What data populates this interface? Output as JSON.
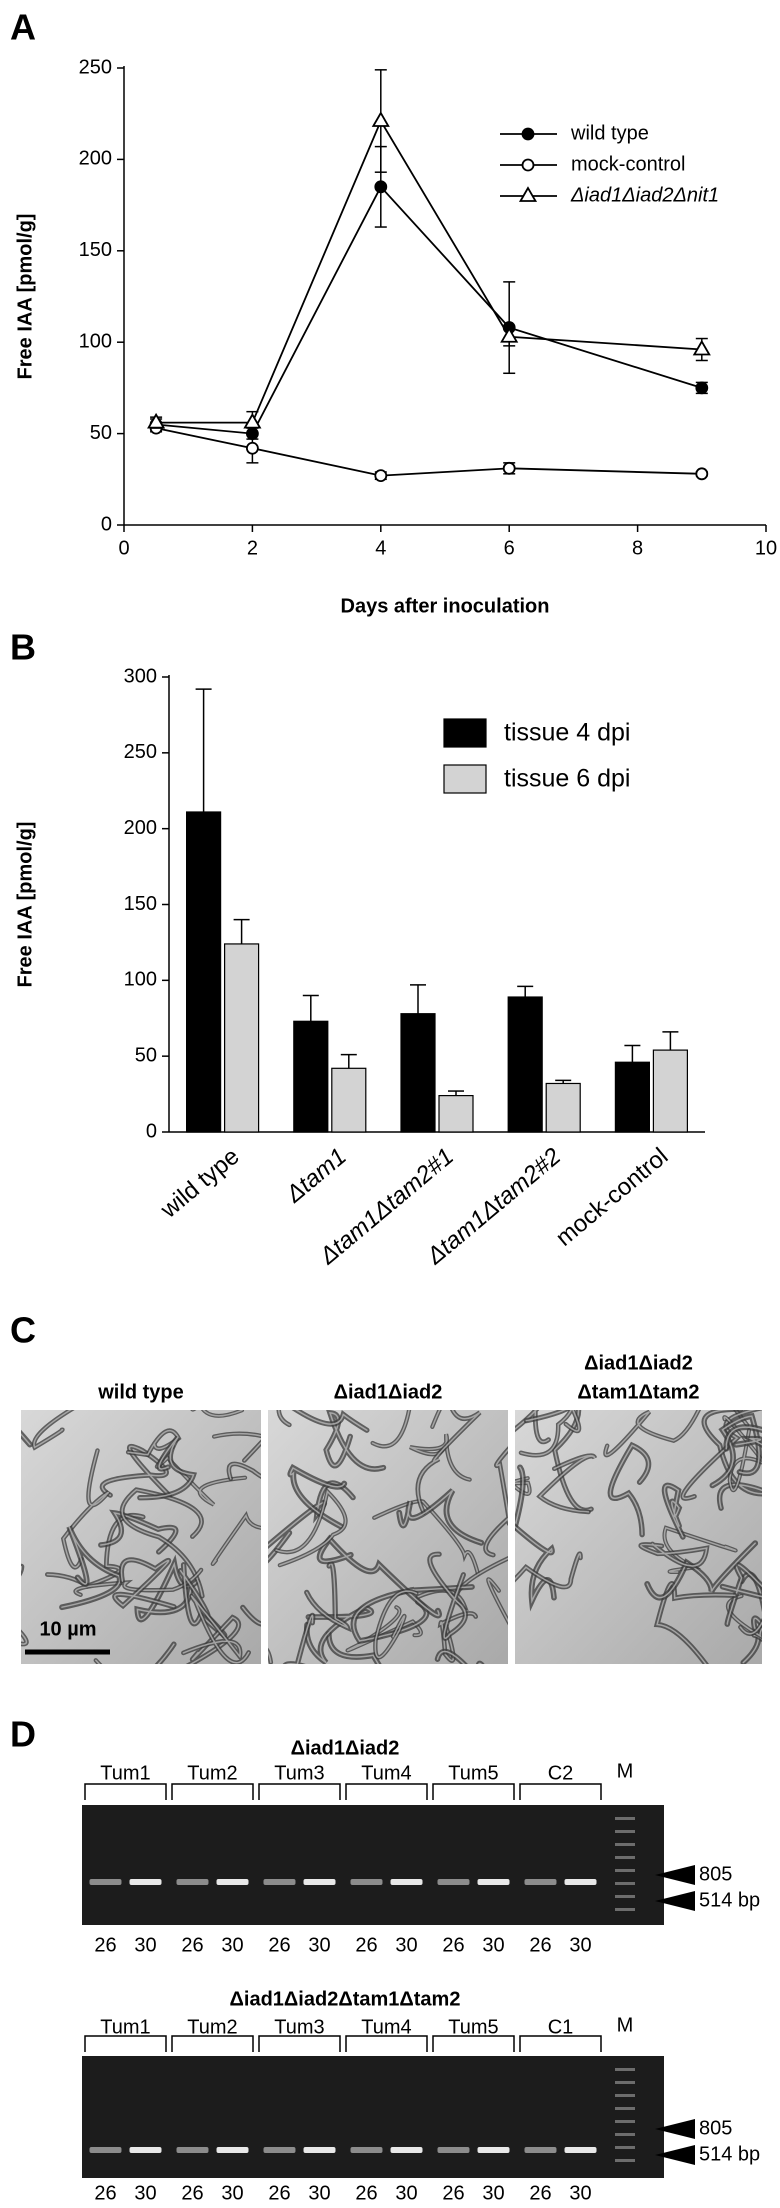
{
  "panel_labels": [
    "A",
    "B",
    "C",
    "D"
  ],
  "chart_data": [
    {
      "type": "line",
      "y_label": "Free IAA [pmol/g]",
      "x_label": "Days after inoculation",
      "x": [
        0.5,
        2,
        4,
        6,
        9
      ],
      "xlim": [
        0,
        10
      ],
      "xticks": [
        0,
        2,
        4,
        6,
        8,
        10
      ],
      "ylim": [
        0,
        250
      ],
      "yticks": [
        0,
        50,
        100,
        150,
        200,
        250
      ],
      "legend": "upper right",
      "series": [
        {
          "name": "wild type",
          "color": "#000000",
          "marker": "filled circle",
          "values": [
            55,
            50,
            185,
            108,
            75
          ],
          "errors": [
            3,
            3,
            22,
            25,
            3
          ]
        },
        {
          "name": "mock-control",
          "color": "#000000",
          "marker": "open circle",
          "values": [
            53,
            42,
            27,
            31,
            28
          ],
          "errors": [
            2,
            8,
            2,
            3,
            1
          ]
        },
        {
          "name": "Δiad1Δiad2Δnit1",
          "color": "#000000",
          "marker": "open triangle",
          "values": [
            56,
            56,
            221,
            103,
            96
          ],
          "errors": [
            3,
            6,
            28,
            5,
            6
          ]
        }
      ]
    },
    {
      "type": "bar",
      "y_label": "Free IAA [pmol/g]",
      "categories": [
        "wild type",
        "Δtam1",
        "Δtam1Δtam2#1",
        "Δtam1Δtam2#2",
        "mock-control"
      ],
      "ylim": [
        0,
        300
      ],
      "yticks": [
        0,
        50,
        100,
        150,
        200,
        250,
        300
      ],
      "legend": "upper right",
      "series": [
        {
          "name": "tissue 4 dpi",
          "color": "#000000",
          "values": [
            211,
            73,
            78,
            89,
            46
          ],
          "errors": [
            81,
            17,
            19,
            7,
            11
          ]
        },
        {
          "name": "tissue 6 dpi",
          "color": "#d3d3d3",
          "values": [
            124,
            42,
            24,
            32,
            54
          ],
          "errors": [
            16,
            9,
            3,
            2,
            12
          ]
        }
      ]
    }
  ],
  "micrographs": {
    "titles": [
      [
        "wild type"
      ],
      [
        "Δiad1Δiad2"
      ],
      [
        "Δiad1Δiad2",
        "Δtam1Δtam2"
      ]
    ],
    "scale_bar": "10 µm"
  },
  "gels": [
    {
      "title": "Δiad1Δiad2",
      "groups": [
        "Tum1",
        "Tum2",
        "Tum3",
        "Tum4",
        "Tum5",
        "C2"
      ],
      "marker": "M",
      "sizes": [
        "805",
        "514 bp"
      ],
      "cycles": [
        "26",
        "30"
      ]
    },
    {
      "title": "Δiad1Δiad2Δtam1Δtam2",
      "groups": [
        "Tum1",
        "Tum2",
        "Tum3",
        "Tum4",
        "Tum5",
        "C1"
      ],
      "marker": "M",
      "sizes": [
        "805",
        "514 bp"
      ],
      "cycles": [
        "26",
        "30"
      ]
    }
  ]
}
